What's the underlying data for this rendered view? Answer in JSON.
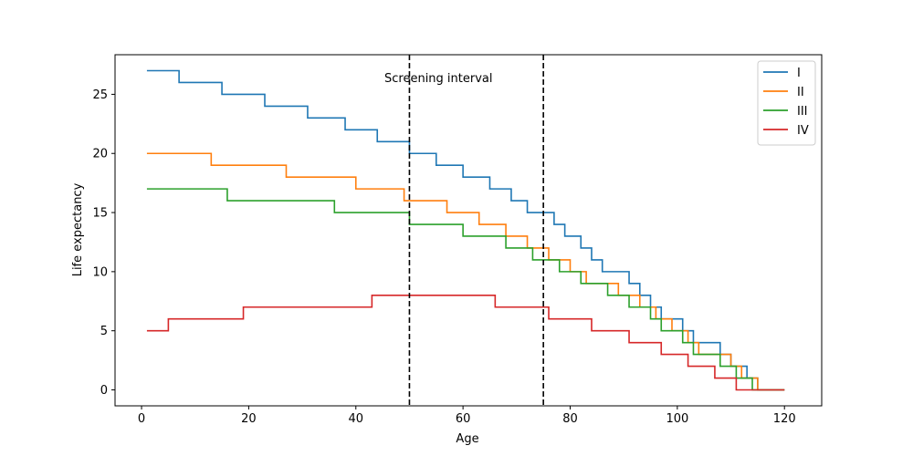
{
  "chart_data": {
    "type": "line",
    "title": "",
    "xlabel": "Age",
    "ylabel": "Life expectancy",
    "xlim": [
      -4.95,
      126.95
    ],
    "ylim": [
      -1.35,
      28.35
    ],
    "xticks": [
      0,
      20,
      40,
      60,
      80,
      100,
      120
    ],
    "yticks": [
      0,
      5,
      10,
      15,
      20,
      25
    ],
    "grid": false,
    "legend_position": "top-right",
    "annotation": "Screening interval",
    "vlines": [
      50,
      75
    ],
    "series": [
      {
        "name": "I",
        "color": "#1f77b4",
        "steps": [
          [
            1,
            27
          ],
          [
            7,
            26
          ],
          [
            15,
            25
          ],
          [
            23,
            24
          ],
          [
            31,
            23
          ],
          [
            38,
            22
          ],
          [
            44,
            21
          ],
          [
            50,
            20
          ],
          [
            55,
            19
          ],
          [
            60,
            18
          ],
          [
            65,
            17
          ],
          [
            69,
            16
          ],
          [
            72,
            15
          ],
          [
            75,
            15
          ],
          [
            77,
            14
          ],
          [
            79,
            13
          ],
          [
            82,
            12
          ],
          [
            84,
            11
          ],
          [
            86,
            10
          ],
          [
            89,
            10
          ],
          [
            91,
            9
          ],
          [
            93,
            8
          ],
          [
            95,
            7
          ],
          [
            97,
            6
          ],
          [
            99,
            6
          ],
          [
            101,
            5
          ],
          [
            103,
            4
          ],
          [
            105,
            4
          ],
          [
            108,
            3
          ],
          [
            110,
            2
          ],
          [
            113,
            1
          ],
          [
            115,
            0
          ],
          [
            120,
            0
          ]
        ]
      },
      {
        "name": "II",
        "color": "#ff7f0e",
        "steps": [
          [
            1,
            20
          ],
          [
            13,
            19
          ],
          [
            27,
            18
          ],
          [
            40,
            17
          ],
          [
            49,
            16
          ],
          [
            57,
            15
          ],
          [
            63,
            14
          ],
          [
            68,
            13
          ],
          [
            72,
            12
          ],
          [
            76,
            11
          ],
          [
            80,
            10
          ],
          [
            83,
            9
          ],
          [
            89,
            8
          ],
          [
            93,
            7
          ],
          [
            96,
            6
          ],
          [
            99,
            5
          ],
          [
            102,
            4
          ],
          [
            104,
            3
          ],
          [
            110,
            2
          ],
          [
            112,
            1
          ],
          [
            115,
            0
          ],
          [
            120,
            0
          ]
        ]
      },
      {
        "name": "III",
        "color": "#2ca02c",
        "steps": [
          [
            1,
            17
          ],
          [
            16,
            16
          ],
          [
            36,
            15
          ],
          [
            50,
            14
          ],
          [
            60,
            13
          ],
          [
            68,
            12
          ],
          [
            73,
            11
          ],
          [
            78,
            10
          ],
          [
            82,
            9
          ],
          [
            87,
            8
          ],
          [
            91,
            7
          ],
          [
            95,
            6
          ],
          [
            97,
            5
          ],
          [
            101,
            4
          ],
          [
            103,
            3
          ],
          [
            106,
            3
          ],
          [
            108,
            2
          ],
          [
            111,
            1
          ],
          [
            114,
            0
          ],
          [
            120,
            0
          ]
        ]
      },
      {
        "name": "IV",
        "color": "#d62728",
        "steps": [
          [
            1,
            5
          ],
          [
            5,
            6
          ],
          [
            19,
            7
          ],
          [
            43,
            8
          ],
          [
            66,
            7
          ],
          [
            76,
            6
          ],
          [
            84,
            5
          ],
          [
            91,
            4
          ],
          [
            97,
            3
          ],
          [
            102,
            2
          ],
          [
            107,
            1
          ],
          [
            111,
            0
          ],
          [
            120,
            0
          ]
        ]
      }
    ]
  }
}
